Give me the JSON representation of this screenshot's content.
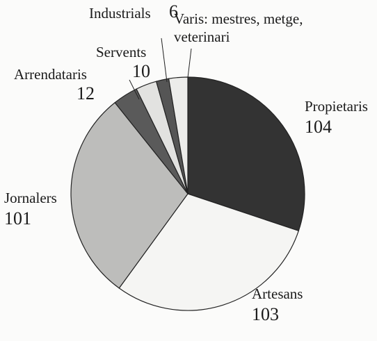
{
  "chart_data": {
    "type": "pie",
    "categories": [
      "Propietaris",
      "Artesans",
      "Jornalers",
      "Arrendataris",
      "Servents",
      "Industrials",
      "Varis: mestres, metge, veterinari"
    ],
    "values": [
      104,
      103,
      101,
      12,
      10,
      6,
      9
    ],
    "colors": [
      "#333333",
      "#f5f5f3",
      "#bdbdbb",
      "#5a5a5a",
      "#e2e2e0",
      "#555555",
      "#ececea"
    ]
  }
}
